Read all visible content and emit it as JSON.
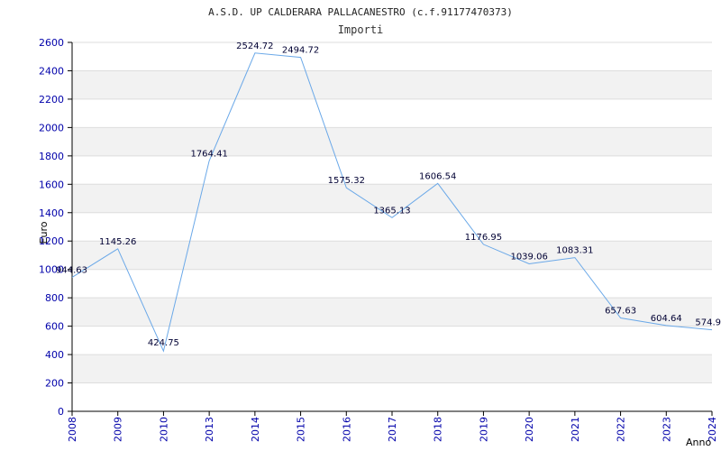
{
  "chart_data": {
    "type": "line",
    "title": "A.S.D. UP CALDERARA PALLACANESTRO (c.f.91177470373)",
    "subtitle": "Importi",
    "xlabel": "Anno",
    "ylabel": "Euro",
    "categories": [
      "2008",
      "2009",
      "2010",
      "2013",
      "2014",
      "2015",
      "2016",
      "2017",
      "2018",
      "2019",
      "2020",
      "2021",
      "2022",
      "2023",
      "2024"
    ],
    "series": [
      {
        "values": [
          944.63,
          1145.26,
          424.75,
          1764.41,
          2524.72,
          2494.72,
          1575.32,
          1365.13,
          1606.54,
          1176.95,
          1039.06,
          1083.31,
          657.63,
          604.64,
          574.9
        ]
      }
    ],
    "data_labels": [
      "944.63",
      "1145.26",
      "424.75",
      "1764.41",
      "2524.72",
      "2494.72",
      "1575.32",
      "1365.13",
      "1606.54",
      "1176.95",
      "1039.06",
      "1083.31",
      "657.63",
      "604.64",
      "574.9"
    ],
    "ylim": [
      0,
      2600
    ],
    "yticks": [
      0,
      200,
      400,
      600,
      800,
      1000,
      1200,
      1400,
      1600,
      1800,
      2000,
      2200,
      2400,
      2600
    ],
    "grid": true,
    "legend": "none",
    "colors": {
      "line": "#6aa8e8",
      "band": "#f2f2f2",
      "gridline": "#dddddd",
      "tick_text": "#0000aa",
      "axis": "#000000"
    }
  }
}
